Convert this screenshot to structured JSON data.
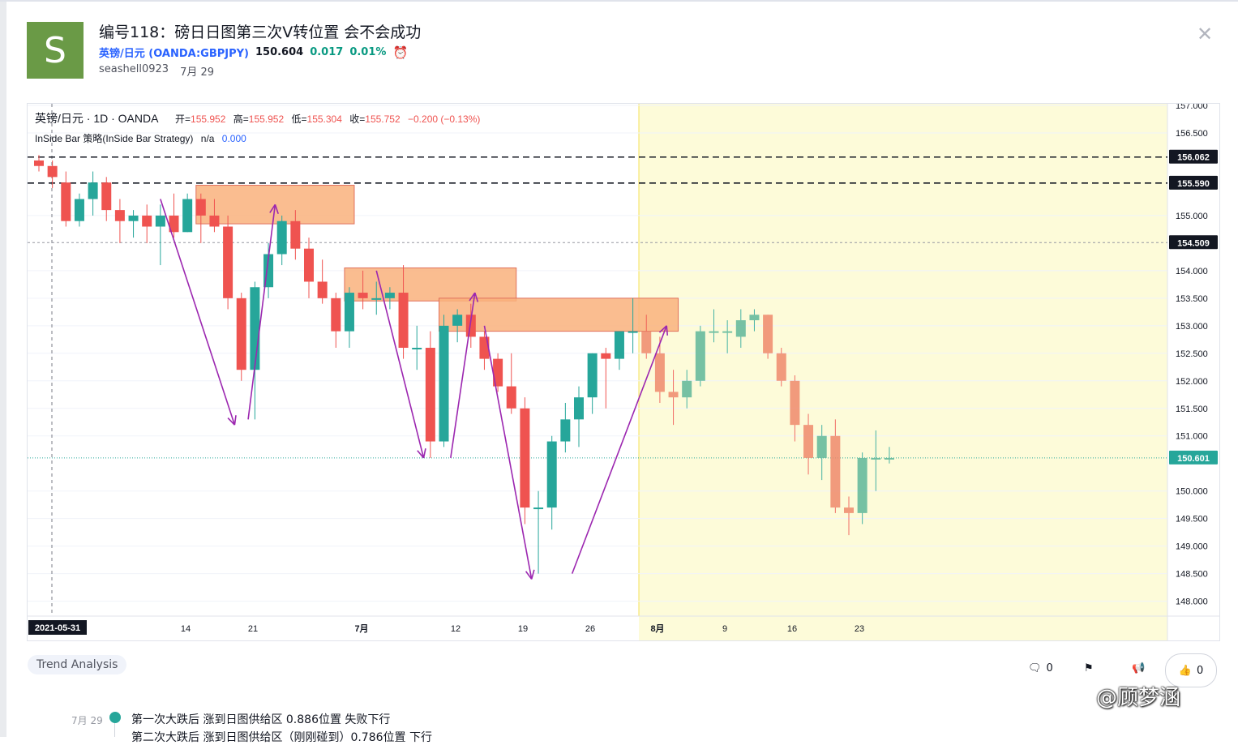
{
  "header": {
    "avatar_letter": "S",
    "title": "编号118：磅日日图第三次V转位置 会不会成功",
    "symbol_name": "英镑/日元",
    "symbol_code": "(OANDA:GBPJPY)",
    "price": "150.604",
    "change": "0.017",
    "change_pct": "0.01%",
    "author": "seashell0923",
    "date": "7月 29"
  },
  "legend": {
    "line1_name": "英镑/日元 · 1D · OANDA",
    "open_label": "开=",
    "open_value": "155.952",
    "high_label": "高=",
    "high_value": "155.952",
    "low_label": "低=",
    "low_value": "155.304",
    "close_label": "收=",
    "close_value": "155.752",
    "change_text": "−0.200 (−0.13%)",
    "indicator_name": "InSide Bar 策略(InSide Bar Strategy)",
    "indicator_na": "n/a",
    "indicator_value": "0.000"
  },
  "chart_data": {
    "type": "candlestick",
    "price_axis_ticks": [
      "157.000",
      "156.500",
      "156.062",
      "155.590",
      "155.000",
      "154.509",
      "154.000",
      "153.500",
      "153.000",
      "152.500",
      "152.000",
      "151.500",
      "151.000",
      "150.601",
      "150.000",
      "149.500",
      "149.000",
      "148.500",
      "148.000"
    ],
    "price_range": [
      147.7,
      157.0
    ],
    "time_labels": [
      "2021-05-31",
      "14",
      "21",
      "7月",
      "12",
      "19",
      "26",
      "8月",
      "9",
      "16",
      "23"
    ],
    "tagged_prices": [
      {
        "value": "156.062",
        "style": "dashed-black"
      },
      {
        "value": "155.590",
        "style": "dashed-black"
      },
      {
        "value": "154.509",
        "style": "dotted-gray"
      },
      {
        "value": "150.601",
        "style": "dotted-green"
      }
    ],
    "candles": [
      {
        "o": 156.0,
        "h": 156.1,
        "l": 155.8,
        "c": 155.9
      },
      {
        "o": 155.9,
        "h": 156.0,
        "l": 155.5,
        "c": 155.7
      },
      {
        "o": 155.6,
        "h": 155.8,
        "l": 154.8,
        "c": 154.9
      },
      {
        "o": 154.9,
        "h": 155.4,
        "l": 154.8,
        "c": 155.3
      },
      {
        "o": 155.3,
        "h": 155.8,
        "l": 155.0,
        "c": 155.6
      },
      {
        "o": 155.6,
        "h": 155.7,
        "l": 154.9,
        "c": 155.1
      },
      {
        "o": 155.1,
        "h": 155.3,
        "l": 154.5,
        "c": 154.9
      },
      {
        "o": 154.9,
        "h": 155.1,
        "l": 154.6,
        "c": 155.0
      },
      {
        "o": 155.0,
        "h": 155.2,
        "l": 154.5,
        "c": 154.8
      },
      {
        "o": 154.8,
        "h": 155.2,
        "l": 154.1,
        "c": 155.0
      },
      {
        "o": 155.0,
        "h": 155.4,
        "l": 154.6,
        "c": 154.7
      },
      {
        "o": 154.7,
        "h": 155.4,
        "l": 154.7,
        "c": 155.3
      },
      {
        "o": 155.3,
        "h": 155.4,
        "l": 154.5,
        "c": 155.0
      },
      {
        "o": 155.0,
        "h": 155.3,
        "l": 154.7,
        "c": 154.8
      },
      {
        "o": 154.8,
        "h": 155.0,
        "l": 153.3,
        "c": 153.5
      },
      {
        "o": 153.5,
        "h": 153.6,
        "l": 152.0,
        "c": 152.2
      },
      {
        "o": 152.2,
        "h": 153.8,
        "l": 151.3,
        "c": 153.7
      },
      {
        "o": 153.7,
        "h": 154.5,
        "l": 153.5,
        "c": 154.3
      },
      {
        "o": 154.3,
        "h": 155.0,
        "l": 154.1,
        "c": 154.9
      },
      {
        "o": 154.9,
        "h": 155.1,
        "l": 154.2,
        "c": 154.4
      },
      {
        "o": 154.4,
        "h": 154.6,
        "l": 153.5,
        "c": 153.8
      },
      {
        "o": 153.8,
        "h": 154.2,
        "l": 153.4,
        "c": 153.5
      },
      {
        "o": 153.5,
        "h": 153.6,
        "l": 152.6,
        "c": 152.9
      },
      {
        "o": 152.9,
        "h": 153.7,
        "l": 152.6,
        "c": 153.6
      },
      {
        "o": 153.6,
        "h": 154.0,
        "l": 153.3,
        "c": 153.5
      },
      {
        "o": 153.5,
        "h": 153.8,
        "l": 153.2,
        "c": 153.5
      },
      {
        "o": 153.5,
        "h": 153.7,
        "l": 153.3,
        "c": 153.6
      },
      {
        "o": 153.6,
        "h": 154.1,
        "l": 152.4,
        "c": 152.6
      },
      {
        "o": 152.6,
        "h": 153.0,
        "l": 152.2,
        "c": 152.6
      },
      {
        "o": 152.6,
        "h": 152.9,
        "l": 150.6,
        "c": 150.9
      },
      {
        "o": 150.9,
        "h": 153.2,
        "l": 150.8,
        "c": 153.0
      },
      {
        "o": 153.0,
        "h": 153.3,
        "l": 152.7,
        "c": 153.2
      },
      {
        "o": 153.2,
        "h": 153.4,
        "l": 152.6,
        "c": 152.8
      },
      {
        "o": 152.8,
        "h": 152.9,
        "l": 152.2,
        "c": 152.4
      },
      {
        "o": 152.4,
        "h": 152.5,
        "l": 151.8,
        "c": 151.9
      },
      {
        "o": 151.9,
        "h": 152.5,
        "l": 151.4,
        "c": 151.5
      },
      {
        "o": 151.5,
        "h": 151.7,
        "l": 149.4,
        "c": 149.7
      },
      {
        "o": 149.7,
        "h": 150.0,
        "l": 148.5,
        "c": 149.7
      },
      {
        "o": 149.7,
        "h": 151.0,
        "l": 149.3,
        "c": 150.9
      },
      {
        "o": 150.9,
        "h": 151.6,
        "l": 150.7,
        "c": 151.3
      },
      {
        "o": 151.3,
        "h": 151.9,
        "l": 150.8,
        "c": 151.7
      },
      {
        "o": 151.7,
        "h": 152.5,
        "l": 151.4,
        "c": 152.5
      },
      {
        "o": 152.5,
        "h": 152.6,
        "l": 151.5,
        "c": 152.4
      },
      {
        "o": 152.4,
        "h": 152.9,
        "l": 152.2,
        "c": 152.9
      },
      {
        "o": 152.9,
        "h": 153.5,
        "l": 152.5,
        "c": 152.9
      },
      {
        "o": 152.9,
        "h": 153.2,
        "l": 152.4,
        "c": 152.5
      },
      {
        "o": 152.5,
        "h": 152.8,
        "l": 151.6,
        "c": 151.8
      },
      {
        "o": 151.8,
        "h": 152.2,
        "l": 151.2,
        "c": 151.7
      },
      {
        "o": 151.7,
        "h": 152.2,
        "l": 151.5,
        "c": 152.0
      },
      {
        "o": 152.0,
        "h": 153.0,
        "l": 151.9,
        "c": 152.9
      },
      {
        "o": 152.9,
        "h": 153.3,
        "l": 152.7,
        "c": 152.9
      },
      {
        "o": 152.9,
        "h": 153.1,
        "l": 152.5,
        "c": 152.9
      },
      {
        "o": 152.8,
        "h": 153.3,
        "l": 152.6,
        "c": 153.1
      },
      {
        "o": 153.1,
        "h": 153.3,
        "l": 152.9,
        "c": 153.2
      },
      {
        "o": 153.2,
        "h": 153.2,
        "l": 152.4,
        "c": 152.5
      },
      {
        "o": 152.5,
        "h": 152.6,
        "l": 151.9,
        "c": 152.0
      },
      {
        "o": 152.0,
        "h": 152.1,
        "l": 150.9,
        "c": 151.2
      },
      {
        "o": 151.2,
        "h": 151.4,
        "l": 150.3,
        "c": 150.6
      },
      {
        "o": 150.6,
        "h": 151.2,
        "l": 150.2,
        "c": 151.0
      },
      {
        "o": 151.0,
        "h": 151.3,
        "l": 149.6,
        "c": 149.7
      },
      {
        "o": 149.7,
        "h": 149.9,
        "l": 149.2,
        "c": 149.6
      },
      {
        "o": 149.6,
        "h": 150.7,
        "l": 149.4,
        "c": 150.6
      },
      {
        "o": 150.6,
        "h": 151.1,
        "l": 150.0,
        "c": 150.6
      },
      {
        "o": 150.6,
        "h": 150.8,
        "l": 150.5,
        "c": 150.6
      }
    ]
  },
  "tags": {
    "trend": "Trend Analysis"
  },
  "actions": {
    "comments": "0",
    "likes": "0"
  },
  "watermark": "@顾梦涵",
  "update": {
    "date": "7月 29",
    "text": "第一次大跌后 涨到日图供给区 0.886位置 失败下行",
    "text2": "第二次大跌后 涨到日图供给区（刚刚碰到）0.786位置 下行"
  },
  "colors": {
    "up": "#26a69a",
    "down": "#ef5350",
    "accent": "#2962ff",
    "zone": "#f9b27d",
    "zone_border": "#e0705c",
    "arrow": "#9c27b0",
    "future_bg": "#fdfbd9"
  }
}
